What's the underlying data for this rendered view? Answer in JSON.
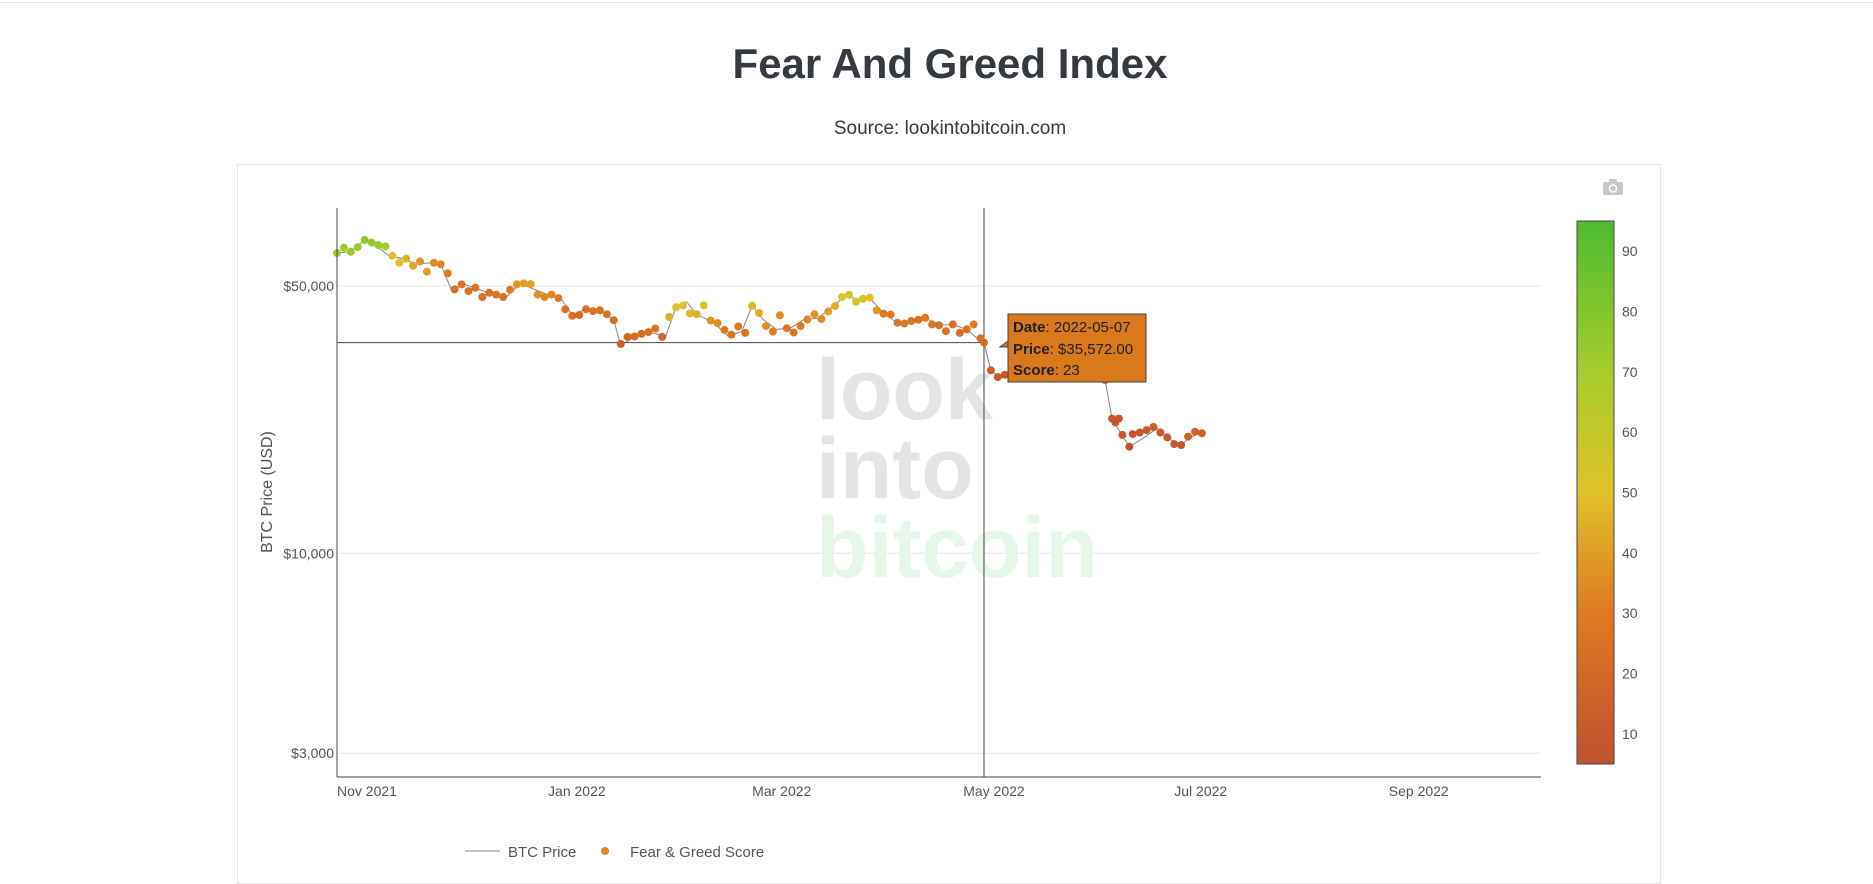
{
  "page": {
    "title": "Fear And Greed Index",
    "subtitle": "Source: lookintobitcoin.com"
  },
  "toolbar": {
    "icon": "camera-icon"
  },
  "watermark": {
    "line1": "look",
    "line2": "into",
    "line3": "bitcoin"
  },
  "colors": {
    "low": "#c0522f",
    "mid_low": "#df7a22",
    "mid": "#e0c12a",
    "high_mid": "#a8cc2c",
    "high": "#4cbb30",
    "axis": "#444444",
    "grid": "#e6e6e6",
    "price_line": "#888888"
  },
  "tooltip": {
    "date_label": "Date",
    "date_value": ": 2022-05-07",
    "price_label": "Price",
    "price_value": ": $35,572.00",
    "score_label": "Score",
    "score_value": ": 23"
  },
  "legend": {
    "price": "BTC Price",
    "score": "Fear & Greed Score"
  },
  "chart_data": {
    "type": "scatter",
    "title": "Fear And Greed Index",
    "subtitle": "Source: lookintobitcoin.com",
    "ylabel": "BTC Price (USD)",
    "xlabel": "",
    "y_scale": "log",
    "ylim": [
      2600,
      80000
    ],
    "xlim": [
      "2021-11-01",
      "2022-10-15"
    ],
    "x_ticks": [
      {
        "date": "2021-11-01",
        "label": "Nov 2021"
      },
      {
        "date": "2022-01-01",
        "label": "Jan 2022"
      },
      {
        "date": "2022-03-01",
        "label": "Mar 2022"
      },
      {
        "date": "2022-05-01",
        "label": "May 2022"
      },
      {
        "date": "2022-07-01",
        "label": "Jul 2022"
      },
      {
        "date": "2022-09-01",
        "label": "Sep 2022"
      }
    ],
    "y_ticks": [
      {
        "value": 50000,
        "label": "$50,000"
      },
      {
        "value": 10000,
        "label": "$10,000"
      },
      {
        "value": 3000,
        "label": "$3,000"
      }
    ],
    "colorbar": {
      "range": [
        5,
        95
      ],
      "ticks": [
        10,
        20,
        30,
        40,
        50,
        60,
        70,
        80,
        90
      ]
    },
    "grid": true,
    "legend_position": "bottom",
    "series": [
      {
        "name": "BTC Price",
        "type": "line",
        "points": [
          [
            "2021-11-01",
            61000
          ],
          [
            "2021-11-05",
            61500
          ],
          [
            "2021-11-09",
            66000
          ],
          [
            "2021-11-12",
            64000
          ],
          [
            "2021-11-16",
            60000
          ],
          [
            "2021-11-20",
            59000
          ],
          [
            "2021-11-24",
            57000
          ],
          [
            "2021-11-28",
            57500
          ],
          [
            "2021-12-01",
            57000
          ],
          [
            "2021-12-04",
            49000
          ],
          [
            "2021-12-08",
            50500
          ],
          [
            "2021-12-12",
            49000
          ],
          [
            "2021-12-16",
            47500
          ],
          [
            "2021-12-20",
            46800
          ],
          [
            "2021-12-24",
            50800
          ],
          [
            "2021-12-28",
            49000
          ],
          [
            "2022-01-01",
            47500
          ],
          [
            "2022-01-05",
            46000
          ],
          [
            "2022-01-08",
            42000
          ],
          [
            "2022-01-12",
            43600
          ],
          [
            "2022-01-16",
            43000
          ],
          [
            "2022-01-20",
            40700
          ],
          [
            "2022-01-22",
            35000
          ],
          [
            "2022-01-26",
            36800
          ],
          [
            "2022-01-30",
            37900
          ],
          [
            "2022-02-04",
            37000
          ],
          [
            "2022-02-07",
            44000
          ],
          [
            "2022-02-10",
            45500
          ],
          [
            "2022-02-13",
            42200
          ],
          [
            "2022-02-18",
            40000
          ],
          [
            "2022-02-22",
            37000
          ],
          [
            "2022-02-26",
            38000
          ],
          [
            "2022-03-01",
            44500
          ],
          [
            "2022-03-04",
            41000
          ],
          [
            "2022-03-08",
            38500
          ],
          [
            "2022-03-12",
            38800
          ],
          [
            "2022-03-16",
            40900
          ],
          [
            "2022-03-20",
            41200
          ],
          [
            "2022-03-24",
            44000
          ],
          [
            "2022-03-28",
            47200
          ],
          [
            "2022-04-01",
            46000
          ],
          [
            "2022-04-04",
            46500
          ],
          [
            "2022-04-08",
            42500
          ],
          [
            "2022-04-12",
            40000
          ],
          [
            "2022-04-16",
            40500
          ],
          [
            "2022-04-20",
            41300
          ],
          [
            "2022-04-24",
            39500
          ],
          [
            "2022-04-28",
            39700
          ],
          [
            "2022-05-02",
            38500
          ],
          [
            "2022-05-05",
            36500
          ],
          [
            "2022-05-07",
            35572
          ],
          [
            "2022-05-09",
            30000
          ],
          [
            "2022-05-12",
            28800
          ],
          [
            "2022-05-16",
            29900
          ],
          [
            "2022-05-20",
            29300
          ],
          [
            "2022-05-25",
            29500
          ],
          [
            "2022-05-30",
            31700
          ],
          [
            "2022-06-03",
            29700
          ],
          [
            "2022-06-08",
            30200
          ],
          [
            "2022-06-11",
            28400
          ],
          [
            "2022-06-13",
            22500
          ],
          [
            "2022-06-15",
            21000
          ],
          [
            "2022-06-18",
            19000
          ],
          [
            "2022-06-22",
            20000
          ],
          [
            "2022-06-26",
            21200
          ],
          [
            "2022-06-30",
            19800
          ],
          [
            "2022-07-03",
            19300
          ],
          [
            "2022-07-06",
            20200
          ],
          [
            "2022-07-10",
            20800
          ]
        ]
      },
      {
        "name": "Fear & Greed Score",
        "type": "scatter",
        "points": [
          [
            "2021-11-01",
            61000,
            72
          ],
          [
            "2021-11-03",
            63000,
            73
          ],
          [
            "2021-11-05",
            61500,
            74
          ],
          [
            "2021-11-07",
            63200,
            73
          ],
          [
            "2021-11-09",
            66000,
            76
          ],
          [
            "2021-11-11",
            65000,
            75
          ],
          [
            "2021-11-13",
            64000,
            73
          ],
          [
            "2021-11-15",
            63500,
            71
          ],
          [
            "2021-11-17",
            60000,
            52
          ],
          [
            "2021-11-19",
            57500,
            49
          ],
          [
            "2021-11-21",
            59000,
            46
          ],
          [
            "2021-11-23",
            56500,
            43
          ],
          [
            "2021-11-25",
            58000,
            38
          ],
          [
            "2021-11-27",
            54500,
            40
          ],
          [
            "2021-11-29",
            57500,
            35
          ],
          [
            "2021-12-01",
            57000,
            34
          ],
          [
            "2021-12-03",
            54000,
            30
          ],
          [
            "2021-12-05",
            49000,
            22
          ],
          [
            "2021-12-07",
            50500,
            24
          ],
          [
            "2021-12-09",
            48500,
            26
          ],
          [
            "2021-12-11",
            49500,
            27
          ],
          [
            "2021-12-13",
            46800,
            24
          ],
          [
            "2021-12-15",
            48000,
            25
          ],
          [
            "2021-12-17",
            47500,
            27
          ],
          [
            "2021-12-19",
            46800,
            25
          ],
          [
            "2021-12-21",
            48900,
            30
          ],
          [
            "2021-12-23",
            50500,
            38
          ],
          [
            "2021-12-25",
            50800,
            40
          ],
          [
            "2021-12-27",
            50600,
            41
          ],
          [
            "2021-12-29",
            47500,
            36
          ],
          [
            "2021-12-31",
            46800,
            34
          ],
          [
            "2022-01-02",
            47500,
            33
          ],
          [
            "2022-01-04",
            46500,
            29
          ],
          [
            "2022-01-06",
            43500,
            25
          ],
          [
            "2022-01-08",
            41800,
            22
          ],
          [
            "2022-01-10",
            42000,
            23
          ],
          [
            "2022-01-12",
            43500,
            24
          ],
          [
            "2022-01-14",
            43000,
            26
          ],
          [
            "2022-01-16",
            43200,
            25
          ],
          [
            "2022-01-18",
            42200,
            27
          ],
          [
            "2022-01-20",
            40700,
            24
          ],
          [
            "2022-01-22",
            35300,
            13
          ],
          [
            "2022-01-24",
            36800,
            18
          ],
          [
            "2022-01-26",
            36900,
            20
          ],
          [
            "2022-01-28",
            37500,
            21
          ],
          [
            "2022-01-30",
            37900,
            23
          ],
          [
            "2022-02-01",
            38700,
            25
          ],
          [
            "2022-02-03",
            36800,
            19
          ],
          [
            "2022-02-05",
            41500,
            45
          ],
          [
            "2022-02-07",
            44000,
            50
          ],
          [
            "2022-02-09",
            44500,
            51
          ],
          [
            "2022-02-11",
            42400,
            47
          ],
          [
            "2022-02-13",
            42200,
            45
          ],
          [
            "2022-02-15",
            44500,
            52
          ],
          [
            "2022-02-17",
            40600,
            36
          ],
          [
            "2022-02-19",
            40000,
            35
          ],
          [
            "2022-02-21",
            38400,
            30
          ],
          [
            "2022-02-23",
            37300,
            27
          ],
          [
            "2022-02-25",
            39200,
            30
          ],
          [
            "2022-02-27",
            37700,
            28
          ],
          [
            "2022-03-01",
            44400,
            47
          ],
          [
            "2022-03-03",
            42500,
            45
          ],
          [
            "2022-03-05",
            39300,
            35
          ],
          [
            "2022-03-07",
            38000,
            30
          ],
          [
            "2022-03-09",
            41900,
            34
          ],
          [
            "2022-03-11",
            38800,
            29
          ],
          [
            "2022-03-13",
            37800,
            28
          ],
          [
            "2022-03-15",
            39300,
            30
          ],
          [
            "2022-03-17",
            40900,
            33
          ],
          [
            "2022-03-19",
            42200,
            36
          ],
          [
            "2022-03-21",
            41000,
            35
          ],
          [
            "2022-03-23",
            42900,
            41
          ],
          [
            "2022-03-25",
            44300,
            44
          ],
          [
            "2022-03-27",
            46800,
            52
          ],
          [
            "2022-03-29",
            47400,
            56
          ],
          [
            "2022-03-31",
            45500,
            54
          ],
          [
            "2022-04-02",
            46300,
            52
          ],
          [
            "2022-04-04",
            46600,
            50
          ],
          [
            "2022-04-06",
            43200,
            38
          ],
          [
            "2022-04-08",
            42300,
            30
          ],
          [
            "2022-04-10",
            42100,
            29
          ],
          [
            "2022-04-12",
            40100,
            26
          ],
          [
            "2022-04-14",
            39900,
            28
          ],
          [
            "2022-04-16",
            40500,
            27
          ],
          [
            "2022-04-18",
            40800,
            26
          ],
          [
            "2022-04-20",
            41300,
            29
          ],
          [
            "2022-04-22",
            39700,
            26
          ],
          [
            "2022-04-24",
            39500,
            24
          ],
          [
            "2022-04-26",
            38100,
            25
          ],
          [
            "2022-04-28",
            39700,
            27
          ],
          [
            "2022-04-30",
            37700,
            22
          ],
          [
            "2022-05-02",
            38500,
            25
          ],
          [
            "2022-05-04",
            39700,
            30
          ],
          [
            "2022-05-06",
            36500,
            25
          ],
          [
            "2022-05-07",
            35572,
            23
          ],
          [
            "2022-05-09",
            30100,
            12
          ],
          [
            "2022-05-11",
            28900,
            10
          ],
          [
            "2022-05-13",
            29300,
            12
          ],
          [
            "2022-05-15",
            31300,
            14
          ],
          [
            "2022-05-17",
            30400,
            13
          ],
          [
            "2022-05-19",
            30300,
            13
          ],
          [
            "2022-05-21",
            29400,
            12
          ],
          [
            "2022-05-23",
            29100,
            13
          ],
          [
            "2022-05-25",
            29500,
            13
          ],
          [
            "2022-05-27",
            28600,
            12
          ],
          [
            "2022-05-29",
            29400,
            13
          ],
          [
            "2022-05-31",
            31800,
            14
          ],
          [
            "2022-06-02",
            30500,
            13
          ],
          [
            "2022-06-04",
            29800,
            12
          ],
          [
            "2022-06-06",
            31400,
            13
          ],
          [
            "2022-06-08",
            30200,
            12
          ],
          [
            "2022-06-10",
            29100,
            14
          ],
          [
            "2022-06-11",
            28400,
            13
          ],
          [
            "2022-06-13",
            22500,
            10
          ],
          [
            "2022-06-14",
            22000,
            9
          ],
          [
            "2022-06-15",
            22500,
            9
          ],
          [
            "2022-06-16",
            20400,
            8
          ],
          [
            "2022-06-18",
            19000,
            7
          ],
          [
            "2022-06-19",
            20500,
            8
          ],
          [
            "2022-06-21",
            20700,
            9
          ],
          [
            "2022-06-23",
            21000,
            10
          ],
          [
            "2022-06-25",
            21400,
            12
          ],
          [
            "2022-06-27",
            20700,
            11
          ],
          [
            "2022-06-29",
            20100,
            10
          ],
          [
            "2022-07-01",
            19300,
            8
          ],
          [
            "2022-07-03",
            19200,
            9
          ],
          [
            "2022-07-05",
            20200,
            14
          ],
          [
            "2022-07-07",
            20800,
            16
          ],
          [
            "2022-07-09",
            20600,
            15
          ]
        ]
      }
    ]
  }
}
